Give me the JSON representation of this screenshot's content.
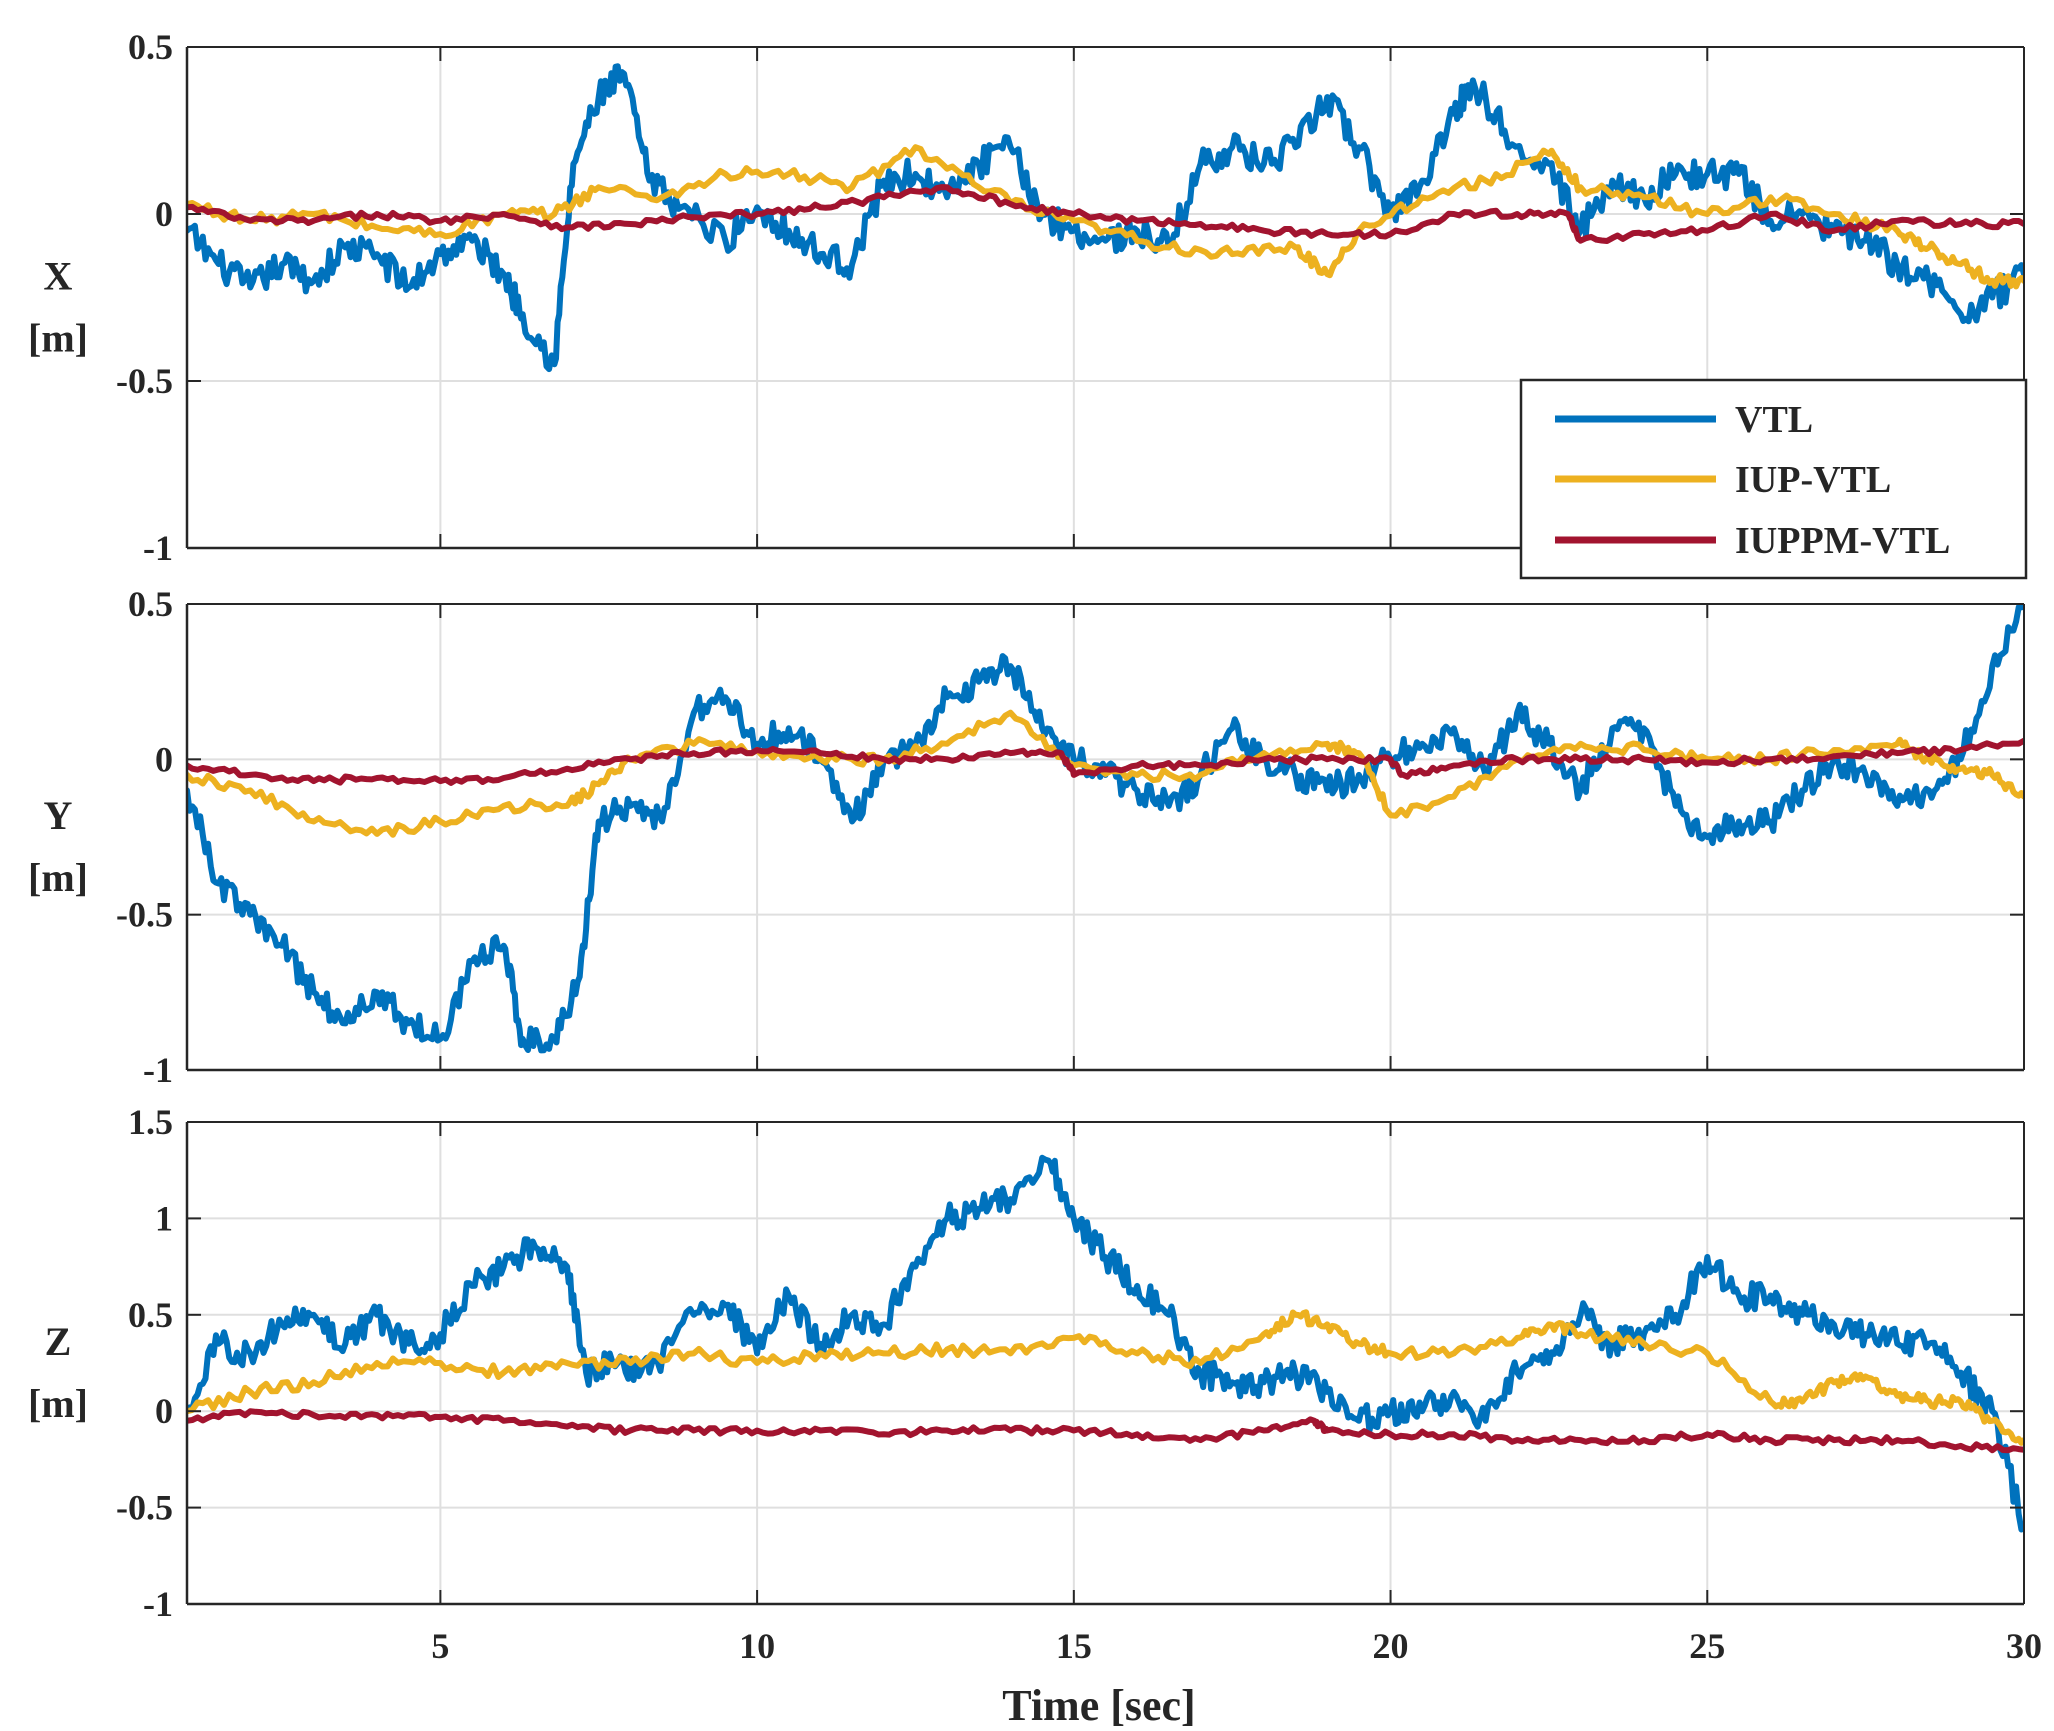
{
  "chart_data": [
    {
      "type": "line",
      "panel": "X",
      "ylabel": [
        "X",
        "[m]"
      ],
      "xlabel": "",
      "xlim": [
        1,
        30
      ],
      "ylim": [
        -1,
        0.5
      ],
      "xticks": [
        5,
        10,
        15,
        20,
        25,
        30
      ],
      "yticks": [
        -1,
        -0.5,
        0,
        0.5
      ],
      "ytick_labels": [
        "-1",
        "-0.5",
        "0",
        "0.5"
      ],
      "xtick_labels": [
        "",
        "",
        "",
        "",
        "",
        ""
      ],
      "grid": true,
      "legend": {
        "placement": "bottom-right",
        "entries": [
          "VTL",
          "IUP-VTL",
          "IUPPM-VTL"
        ]
      },
      "series": [
        {
          "name": "VTL",
          "color": "#0072BD",
          "x": [
            1,
            1.5,
            2,
            2.5,
            3,
            3.5,
            4,
            4.5,
            5,
            5.5,
            6,
            6.3,
            6.8,
            7.1,
            7.5,
            7.9,
            8.3,
            8.8,
            9.5,
            10,
            10.5,
            11,
            11.5,
            12,
            12.5,
            13,
            13.5,
            14,
            14.5,
            15,
            15.5,
            16,
            16.5,
            17,
            17.5,
            18,
            18.5,
            19,
            19.5,
            20,
            20.5,
            21,
            21.3,
            21.8,
            22.5,
            23,
            23.5,
            24,
            24.5,
            25,
            25.5,
            26,
            26.5,
            27,
            27.5,
            28,
            28.5,
            29,
            29.5,
            30
          ],
          "values": [
            -0.05,
            -0.15,
            -0.22,
            -0.15,
            -0.2,
            -0.1,
            -0.12,
            -0.22,
            -0.12,
            -0.08,
            -0.18,
            -0.3,
            -0.45,
            0.15,
            0.35,
            0.42,
            0.1,
            0.02,
            -0.08,
            0.02,
            -0.05,
            -0.12,
            -0.15,
            0.1,
            0.12,
            0.05,
            0.15,
            0.2,
            0.0,
            -0.05,
            -0.08,
            -0.05,
            -0.1,
            0.15,
            0.2,
            0.15,
            0.2,
            0.35,
            0.2,
            0.0,
            0.1,
            0.3,
            0.4,
            0.25,
            0.15,
            -0.05,
            0.1,
            0.05,
            0.12,
            0.12,
            0.12,
            -0.02,
            0.0,
            -0.05,
            -0.08,
            -0.15,
            -0.2,
            -0.3,
            -0.25,
            -0.18
          ]
        },
        {
          "name": "IUP-VTL",
          "color": "#EDB120",
          "x": [
            1,
            2,
            3,
            4,
            5,
            6,
            6.8,
            7.5,
            8.5,
            9.5,
            10.5,
            11.5,
            12.5,
            13.5,
            14.5,
            15.5,
            16.5,
            17.5,
            18.5,
            19,
            19.5,
            20.5,
            21.5,
            22.5,
            23,
            24,
            25,
            26,
            27,
            28,
            28.5,
            29,
            29.5,
            30
          ],
          "values": [
            0.03,
            -0.02,
            0.0,
            -0.04,
            -0.06,
            0.0,
            0.0,
            0.08,
            0.05,
            0.12,
            0.12,
            0.08,
            0.2,
            0.08,
            0.0,
            -0.05,
            -0.1,
            -0.12,
            -0.1,
            -0.18,
            -0.05,
            0.05,
            0.1,
            0.18,
            0.08,
            0.05,
            0.0,
            0.05,
            0.0,
            -0.05,
            -0.1,
            -0.15,
            -0.2,
            -0.2
          ]
        },
        {
          "name": "IUPPM-VTL",
          "color": "#A2142F",
          "x": [
            1,
            2,
            3,
            4,
            5,
            6,
            7,
            8,
            9,
            10,
            11,
            12,
            13,
            14,
            15,
            16,
            17,
            18,
            19,
            20,
            21,
            22,
            22.8,
            23,
            24,
            25,
            26,
            27,
            28,
            29,
            30
          ],
          "values": [
            0.02,
            -0.02,
            -0.02,
            0.0,
            -0.02,
            0.0,
            -0.04,
            -0.03,
            -0.01,
            0.0,
            0.02,
            0.05,
            0.08,
            0.03,
            0.0,
            -0.02,
            -0.03,
            -0.05,
            -0.06,
            -0.06,
            0.0,
            0.0,
            0.0,
            -0.08,
            -0.06,
            -0.05,
            0.0,
            -0.05,
            -0.02,
            -0.03,
            -0.03
          ]
        }
      ]
    },
    {
      "type": "line",
      "panel": "Y",
      "ylabel": [
        "Y",
        "[m]"
      ],
      "xlabel": "",
      "xlim": [
        1,
        30
      ],
      "ylim": [
        -1,
        0.5
      ],
      "xticks": [
        5,
        10,
        15,
        20,
        25,
        30
      ],
      "yticks": [
        -1,
        -0.5,
        0,
        0.5
      ],
      "ytick_labels": [
        "-1",
        "-0.5",
        "0",
        "0.5"
      ],
      "xtick_labels": [
        "",
        "",
        "",
        "",
        "",
        ""
      ],
      "grid": true,
      "series": [
        {
          "name": "VTL",
          "color": "#0072BD",
          "x": [
            1,
            1.5,
            2,
            2.5,
            3,
            3.5,
            4,
            4.5,
            5,
            5.5,
            6,
            6.3,
            6.8,
            7.2,
            7.5,
            8,
            8.5,
            9,
            9.5,
            10,
            10.5,
            11,
            11.5,
            12,
            12.5,
            13,
            13.5,
            14,
            14.5,
            15,
            15.5,
            16,
            16.5,
            17,
            17.5,
            18,
            18.5,
            19,
            19.5,
            20,
            20.5,
            21,
            21.5,
            22,
            22.5,
            23,
            23.5,
            24,
            24.5,
            25,
            25.5,
            26,
            26.5,
            27,
            27.5,
            28,
            28.5,
            29,
            29.5,
            30
          ],
          "values": [
            -0.1,
            -0.4,
            -0.5,
            -0.6,
            -0.75,
            -0.85,
            -0.75,
            -0.85,
            -0.9,
            -0.65,
            -0.6,
            -0.9,
            -0.9,
            -0.7,
            -0.2,
            -0.15,
            -0.2,
            0.15,
            0.2,
            0.05,
            0.1,
            0.0,
            -0.2,
            0.0,
            0.05,
            0.2,
            0.25,
            0.3,
            0.1,
            0.0,
            -0.05,
            -0.1,
            -0.15,
            -0.05,
            0.1,
            0.0,
            -0.05,
            -0.1,
            -0.05,
            0.0,
            0.05,
            0.1,
            -0.05,
            0.15,
            0.05,
            -0.1,
            0.1,
            0.1,
            -0.15,
            -0.25,
            -0.2,
            -0.2,
            -0.1,
            0.0,
            -0.05,
            -0.15,
            -0.1,
            0.0,
            0.3,
            0.5
          ]
        },
        {
          "name": "IUP-VTL",
          "color": "#EDB120",
          "x": [
            1,
            2,
            3,
            4,
            5,
            6,
            7,
            7.5,
            8,
            9,
            10,
            11,
            12,
            13,
            14,
            15,
            16,
            17,
            18,
            19,
            19.5,
            20,
            21,
            22,
            23,
            24,
            25,
            26,
            27,
            28,
            28.5,
            29,
            29.5,
            30
          ],
          "values": [
            -0.05,
            -0.1,
            -0.2,
            -0.24,
            -0.2,
            -0.15,
            -0.15,
            -0.08,
            0.0,
            0.05,
            0.03,
            0.0,
            0.0,
            0.05,
            0.15,
            -0.02,
            -0.05,
            -0.05,
            0.02,
            0.05,
            0.02,
            -0.18,
            -0.12,
            0.0,
            0.05,
            0.03,
            0.0,
            0.0,
            0.03,
            0.05,
            0.0,
            -0.03,
            -0.05,
            -0.12
          ]
        },
        {
          "name": "IUPPM-VTL",
          "color": "#A2142F",
          "x": [
            1,
            2,
            3,
            4,
            5,
            6,
            7,
            8,
            9,
            10,
            11,
            12,
            13,
            14,
            14.8,
            15,
            16,
            17,
            18,
            19,
            20,
            20.2,
            21,
            22,
            23,
            24,
            25,
            26,
            27,
            28,
            29,
            30
          ],
          "values": [
            -0.02,
            -0.05,
            -0.07,
            -0.06,
            -0.07,
            -0.06,
            -0.03,
            0.0,
            0.02,
            0.03,
            0.02,
            0.0,
            0.0,
            0.02,
            0.02,
            -0.05,
            -0.02,
            -0.02,
            0.0,
            0.0,
            0.0,
            -0.05,
            -0.02,
            0.0,
            0.0,
            0.0,
            -0.01,
            0.0,
            0.01,
            0.02,
            0.03,
            0.06
          ]
        }
      ]
    },
    {
      "type": "line",
      "panel": "Z",
      "ylabel": [
        "Z",
        "[m]"
      ],
      "xlabel": "Time [sec]",
      "xlim": [
        1,
        30
      ],
      "ylim": [
        -1,
        1.5
      ],
      "xticks": [
        5,
        10,
        15,
        20,
        25,
        30
      ],
      "yticks": [
        -1,
        -0.5,
        0,
        0.5,
        1,
        1.5
      ],
      "ytick_labels": [
        "-1",
        "-0.5",
        "0",
        "0.5",
        "1",
        "1.5"
      ],
      "xtick_labels": [
        "5",
        "10",
        "15",
        "20",
        "25",
        "30"
      ],
      "grid": true,
      "series": [
        {
          "name": "VTL",
          "color": "#0072BD",
          "x": [
            1,
            1.5,
            2,
            2.5,
            3,
            3.5,
            4,
            4.5,
            5,
            5.5,
            6,
            6.5,
            7,
            7.3,
            7.8,
            8.3,
            9,
            9.5,
            10,
            10.5,
            11,
            11.5,
            12,
            12.5,
            13,
            13.5,
            14,
            14.6,
            15,
            15.5,
            16,
            16.5,
            17,
            17.5,
            18,
            18.5,
            19,
            19.5,
            20,
            20.5,
            21,
            21.5,
            22,
            22.5,
            23,
            23.5,
            24,
            24.5,
            25,
            25.5,
            26,
            26.5,
            27,
            27.5,
            28,
            28.5,
            29,
            29.5,
            30
          ],
          "values": [
            0.0,
            0.35,
            0.3,
            0.45,
            0.5,
            0.35,
            0.5,
            0.35,
            0.4,
            0.65,
            0.75,
            0.85,
            0.75,
            0.2,
            0.25,
            0.2,
            0.5,
            0.55,
            0.3,
            0.6,
            0.35,
            0.5,
            0.45,
            0.75,
            1.0,
            1.05,
            1.1,
            1.3,
            1.0,
            0.8,
            0.65,
            0.5,
            0.2,
            0.15,
            0.15,
            0.2,
            0.1,
            -0.05,
            0.0,
            0.0,
            0.1,
            -0.05,
            0.2,
            0.25,
            0.5,
            0.35,
            0.4,
            0.5,
            0.8,
            0.6,
            0.6,
            0.5,
            0.45,
            0.4,
            0.35,
            0.35,
            0.2,
            0.0,
            -0.6
          ]
        },
        {
          "name": "IUP-VTL",
          "color": "#EDB120",
          "x": [
            1,
            2,
            3,
            4,
            5,
            6,
            7,
            8,
            9,
            10,
            11,
            12,
            13,
            14,
            15,
            16,
            17,
            18,
            18.5,
            19,
            19.5,
            20,
            21,
            22,
            22.5,
            23,
            24,
            25,
            26,
            26.5,
            27,
            27.5,
            28,
            28.5,
            29,
            29.5,
            30
          ],
          "values": [
            0.0,
            0.1,
            0.15,
            0.25,
            0.25,
            0.2,
            0.25,
            0.25,
            0.3,
            0.25,
            0.3,
            0.3,
            0.32,
            0.3,
            0.38,
            0.3,
            0.25,
            0.4,
            0.5,
            0.45,
            0.35,
            0.3,
            0.3,
            0.38,
            0.45,
            0.4,
            0.35,
            0.3,
            0.05,
            0.05,
            0.15,
            0.18,
            0.08,
            0.05,
            0.05,
            -0.05,
            -0.15
          ]
        },
        {
          "name": "IUPPM-VTL",
          "color": "#A2142F",
          "x": [
            1,
            2,
            3,
            4,
            5,
            6,
            7,
            8,
            9,
            10,
            11,
            12,
            13,
            14,
            15,
            16,
            17,
            18,
            18.8,
            19,
            20,
            21,
            22,
            23,
            24,
            25,
            26,
            27,
            28,
            29,
            30
          ],
          "values": [
            -0.05,
            0.0,
            -0.02,
            -0.02,
            -0.03,
            -0.05,
            -0.08,
            -0.1,
            -0.1,
            -0.1,
            -0.1,
            -0.12,
            -0.1,
            -0.1,
            -0.1,
            -0.12,
            -0.15,
            -0.1,
            -0.05,
            -0.1,
            -0.12,
            -0.12,
            -0.15,
            -0.15,
            -0.15,
            -0.12,
            -0.15,
            -0.15,
            -0.15,
            -0.18,
            -0.2
          ]
        }
      ]
    }
  ]
}
